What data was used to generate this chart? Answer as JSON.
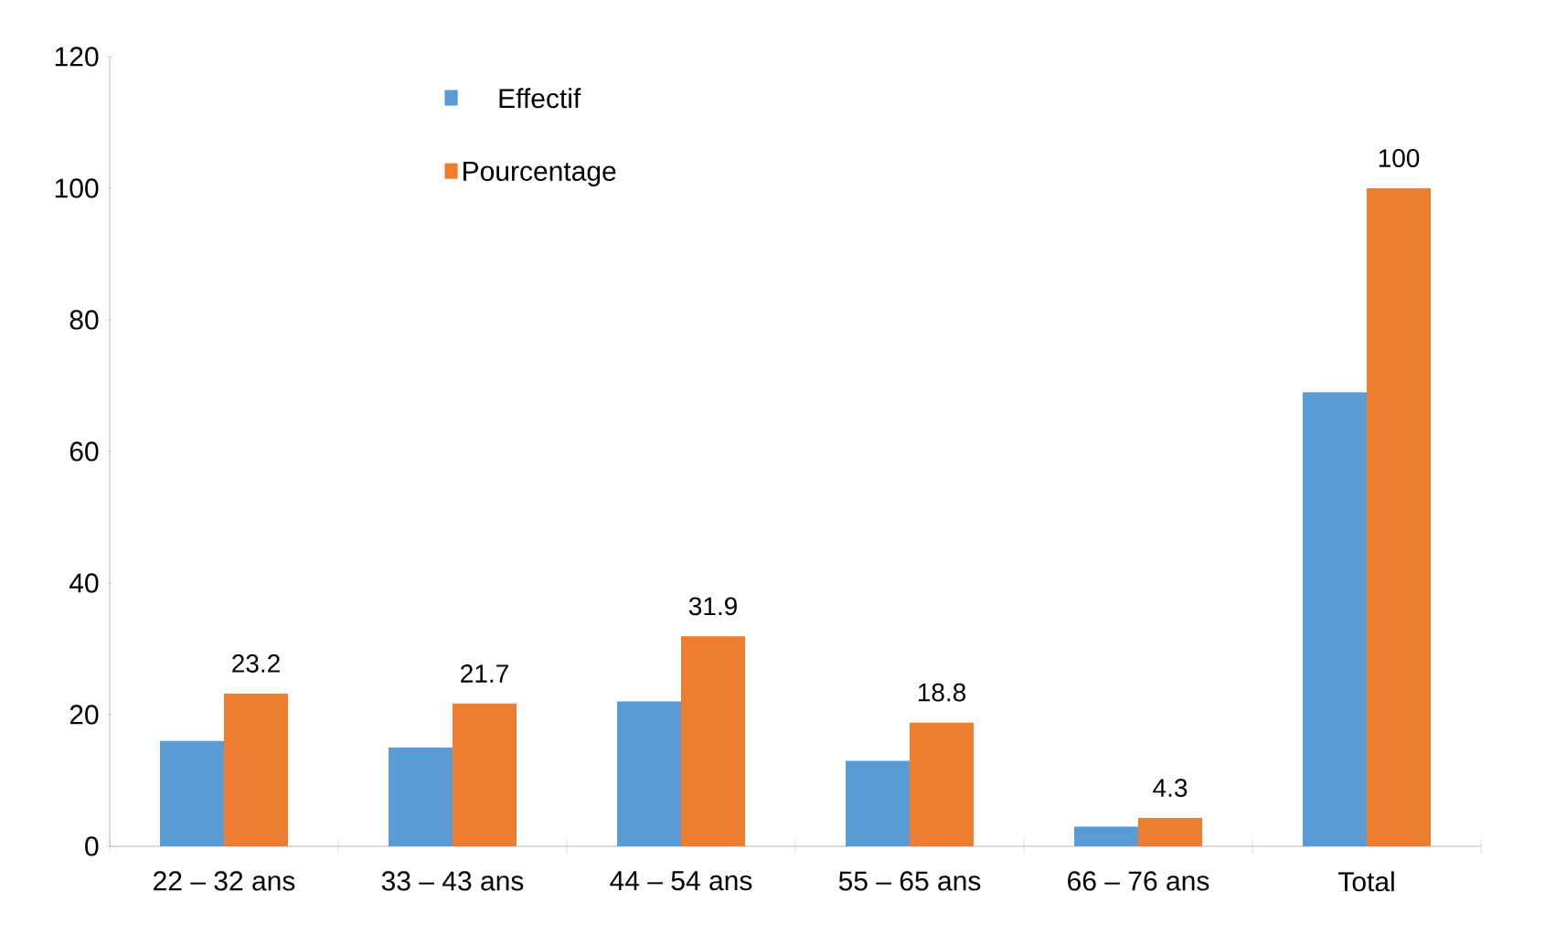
{
  "chart_data": {
    "type": "bar",
    "categories": [
      "22 – 32 ans",
      "33 – 43 ans",
      "44 – 54 ans",
      "55 – 65 ans",
      "66 – 76 ans",
      "Total"
    ],
    "series": [
      {
        "name": "Effectif",
        "color": "#5b9bd5",
        "values": [
          16,
          15,
          22,
          13,
          3,
          69
        ]
      },
      {
        "name": "Pourcentage",
        "color": "#ed7d31",
        "values": [
          23.2,
          21.7,
          31.9,
          18.8,
          4.3,
          100
        ],
        "value_labels": [
          "23.2",
          "21.7",
          "31.9",
          "18.8",
          "4.3",
          "100"
        ]
      }
    ],
    "ylim": [
      0,
      120
    ],
    "yticks": [
      0,
      20,
      40,
      60,
      80,
      100,
      120
    ],
    "legend": "top left",
    "grid": false
  }
}
